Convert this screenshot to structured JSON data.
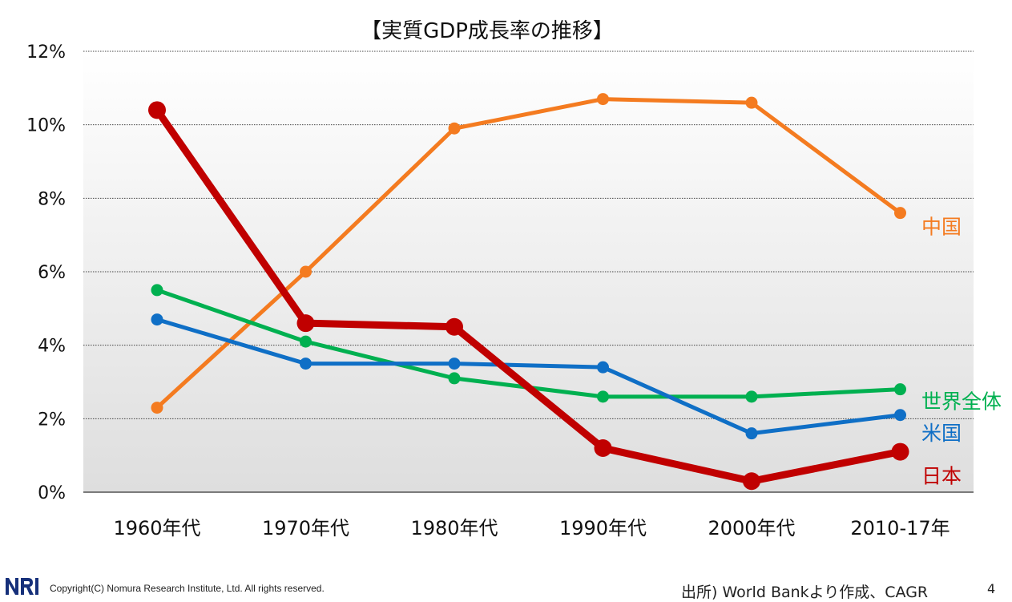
{
  "chart_data": {
    "type": "line",
    "title": "【実質GDP成長率の推移】",
    "xlabel": "",
    "ylabel": "",
    "categories": [
      "1960年代",
      "1970年代",
      "1980年代",
      "1990年代",
      "2000年代",
      "2010-17年"
    ],
    "ylim": [
      0,
      12
    ],
    "yticks": [
      0,
      2,
      4,
      6,
      8,
      10,
      12
    ],
    "ytick_labels": [
      "0%",
      "2%",
      "4%",
      "6%",
      "8%",
      "10%",
      "12%"
    ],
    "grid": true,
    "legend": "labels at right end of each line",
    "series": [
      {
        "name": "中国",
        "color": "#f47b20",
        "values": [
          2.3,
          6.0,
          9.9,
          10.7,
          10.6,
          7.6
        ]
      },
      {
        "name": "世界全体",
        "color": "#00b050",
        "values": [
          5.5,
          4.1,
          3.1,
          2.6,
          2.6,
          2.8
        ]
      },
      {
        "name": "米国",
        "color": "#0f6fc6",
        "values": [
          4.7,
          3.5,
          3.5,
          3.4,
          1.6,
          2.1
        ]
      },
      {
        "name": "日本",
        "color": "#c00000",
        "values": [
          10.4,
          4.6,
          4.5,
          1.2,
          0.3,
          1.1
        ]
      }
    ]
  },
  "footer": {
    "copyright": "Copyright(C) Nomura Research Institute, Ltd. All rights reserved.",
    "source": "出所) World Bankより作成、CAGR",
    "page": "4",
    "logo_text": "NRI"
  }
}
